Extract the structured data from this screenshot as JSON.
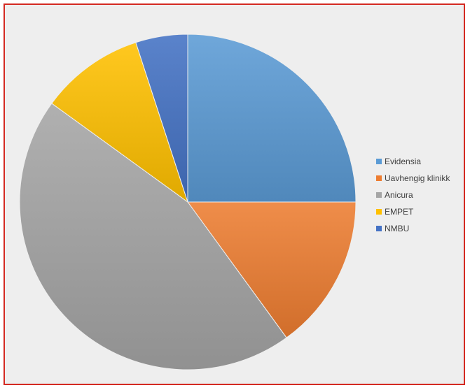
{
  "chart_data": {
    "type": "pie",
    "title": "",
    "categories": [
      "Evidensia",
      "Uavhengig klinikk",
      "Anicura",
      "EMPET",
      "NMBU"
    ],
    "values": [
      25,
      15,
      45,
      10,
      5
    ],
    "colors": [
      "#5b9bd5",
      "#ed7d31",
      "#a5a5a5",
      "#ffc000",
      "#4472c4"
    ],
    "start_angle_deg": 0,
    "direction": "clockwise",
    "legend": {
      "position": "right",
      "entries": [
        "Evidensia",
        "Uavhengig klinikk",
        "Anicura",
        "EMPET",
        "NMBU"
      ]
    }
  }
}
